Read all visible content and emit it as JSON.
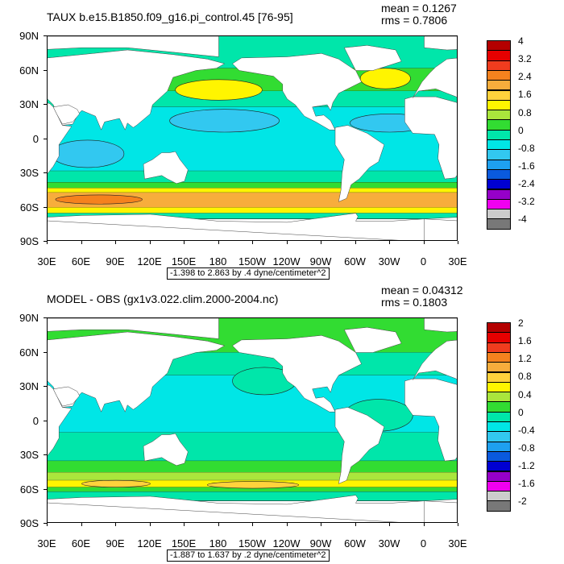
{
  "panels": [
    {
      "id": "top",
      "title": "TAUX b.e15.B1850.f09_g16.pi_control.45 [76-95]",
      "mean": "mean = 0.1267",
      "rms": "rms = 0.7806",
      "range": "-1.398 to 2.863 by .4 dyne/centimeter^2",
      "colorbar_labels": [
        "4",
        "3.2",
        "2.4",
        "1.6",
        "0.8",
        "0",
        "-0.8",
        "-1.6",
        "-2.4",
        "-3.2",
        "-4"
      ],
      "colors": [
        "#b40000",
        "#e60000",
        "#f03c1e",
        "#f5821e",
        "#f7ad3c",
        "#ffd23c",
        "#fff500",
        "#aae63c",
        "#32dc32",
        "#00e6aa",
        "#00e6e6",
        "#32c8f0",
        "#1ea0f0",
        "#0a5ade",
        "#0000d2",
        "#9600c8",
        "#f000f0",
        "#cccccc",
        "#787878"
      ],
      "map_data": {
        "bands": [
          {
            "lat_top": 90,
            "lat_bottom": 62,
            "color_index": 9
          },
          {
            "lat_top": 62,
            "lat_bottom": 42,
            "color_index": 8
          },
          {
            "lat_top": 42,
            "lat_bottom": 28,
            "color_index": 9
          },
          {
            "lat_top": 28,
            "lat_bottom": -28,
            "color_index": 10
          },
          {
            "lat_top": -28,
            "lat_bottom": -38,
            "color_index": 9
          },
          {
            "lat_top": -38,
            "lat_bottom": -43,
            "color_index": 8
          },
          {
            "lat_top": -43,
            "lat_bottom": -47,
            "color_index": 6
          },
          {
            "lat_top": -47,
            "lat_bottom": -60,
            "color_index": 4
          },
          {
            "lat_top": -60,
            "lat_bottom": -65,
            "color_index": 6
          },
          {
            "lat_top": -65,
            "lat_bottom": -70,
            "color_index": 9
          }
        ],
        "patches": [
          {
            "lon": 180,
            "lat": 43,
            "w": 38,
            "h": 9,
            "color_index": 6
          },
          {
            "lon": 326,
            "lat": 53,
            "w": 22,
            "h": 9,
            "color_index": 6
          },
          {
            "lon": 185,
            "lat": 16,
            "w": 48,
            "h": 10,
            "color_index": 11
          },
          {
            "lon": 330,
            "lat": 14,
            "w": 35,
            "h": 8,
            "color_index": 11
          },
          {
            "lon": 65,
            "lat": -13,
            "w": 32,
            "h": 12,
            "color_index": 11
          },
          {
            "lon": 75,
            "lat": -53,
            "w": 38,
            "h": 4,
            "color_index": 3
          }
        ]
      }
    },
    {
      "id": "bottom",
      "title": "MODEL - OBS (gx1v3.022.clim.2000-2004.nc)",
      "mean": "mean = 0.04312",
      "rms": "rms = 0.1803",
      "range": "-1.887 to 1.637 by .2 dyne/centimeter^2",
      "colorbar_labels": [
        "2",
        "1.6",
        "1.2",
        "0.8",
        "0.4",
        "0",
        "-0.4",
        "-0.8",
        "-1.2",
        "-1.6",
        "-2"
      ],
      "colors": [
        "#b40000",
        "#e60000",
        "#f03c1e",
        "#f5821e",
        "#f7ad3c",
        "#ffd23c",
        "#fff500",
        "#aae63c",
        "#32dc32",
        "#00e6aa",
        "#00e6e6",
        "#32c8f0",
        "#1ea0f0",
        "#0a5ade",
        "#0000d2",
        "#9600c8",
        "#f000f0",
        "#cccccc",
        "#787878"
      ],
      "map_data": {
        "bands": [
          {
            "lat_top": 90,
            "lat_bottom": 60,
            "color_index": 8
          },
          {
            "lat_top": 60,
            "lat_bottom": 40,
            "color_index": 9
          },
          {
            "lat_top": 40,
            "lat_bottom": -10,
            "color_index": 10
          },
          {
            "lat_top": -10,
            "lat_bottom": -35,
            "color_index": 9
          },
          {
            "lat_top": -35,
            "lat_bottom": -45,
            "color_index": 8
          },
          {
            "lat_top": -45,
            "lat_bottom": -52,
            "color_index": 7
          },
          {
            "lat_top": -52,
            "lat_bottom": -58,
            "color_index": 6
          },
          {
            "lat_top": -58,
            "lat_bottom": -62,
            "color_index": 8
          },
          {
            "lat_top": -62,
            "lat_bottom": -70,
            "color_index": 9
          }
        ],
        "patches": [
          {
            "lon": 220,
            "lat": 35,
            "w": 28,
            "h": 12,
            "color_index": 9
          },
          {
            "lon": 320,
            "lat": 5,
            "w": 30,
            "h": 14,
            "color_index": 9
          },
          {
            "lon": 90,
            "lat": -55,
            "w": 30,
            "h": 3,
            "color_index": 5
          },
          {
            "lon": 210,
            "lat": -56,
            "w": 40,
            "h": 3,
            "color_index": 5
          }
        ]
      }
    }
  ],
  "lat_labels": [
    "90N",
    "60N",
    "30N",
    "0",
    "30S",
    "60S",
    "90S"
  ],
  "lon_labels": [
    "30E",
    "60E",
    "90E",
    "120E",
    "150E",
    "180",
    "150W",
    "120W",
    "90W",
    "60W",
    "30W",
    "0",
    "30E"
  ]
}
